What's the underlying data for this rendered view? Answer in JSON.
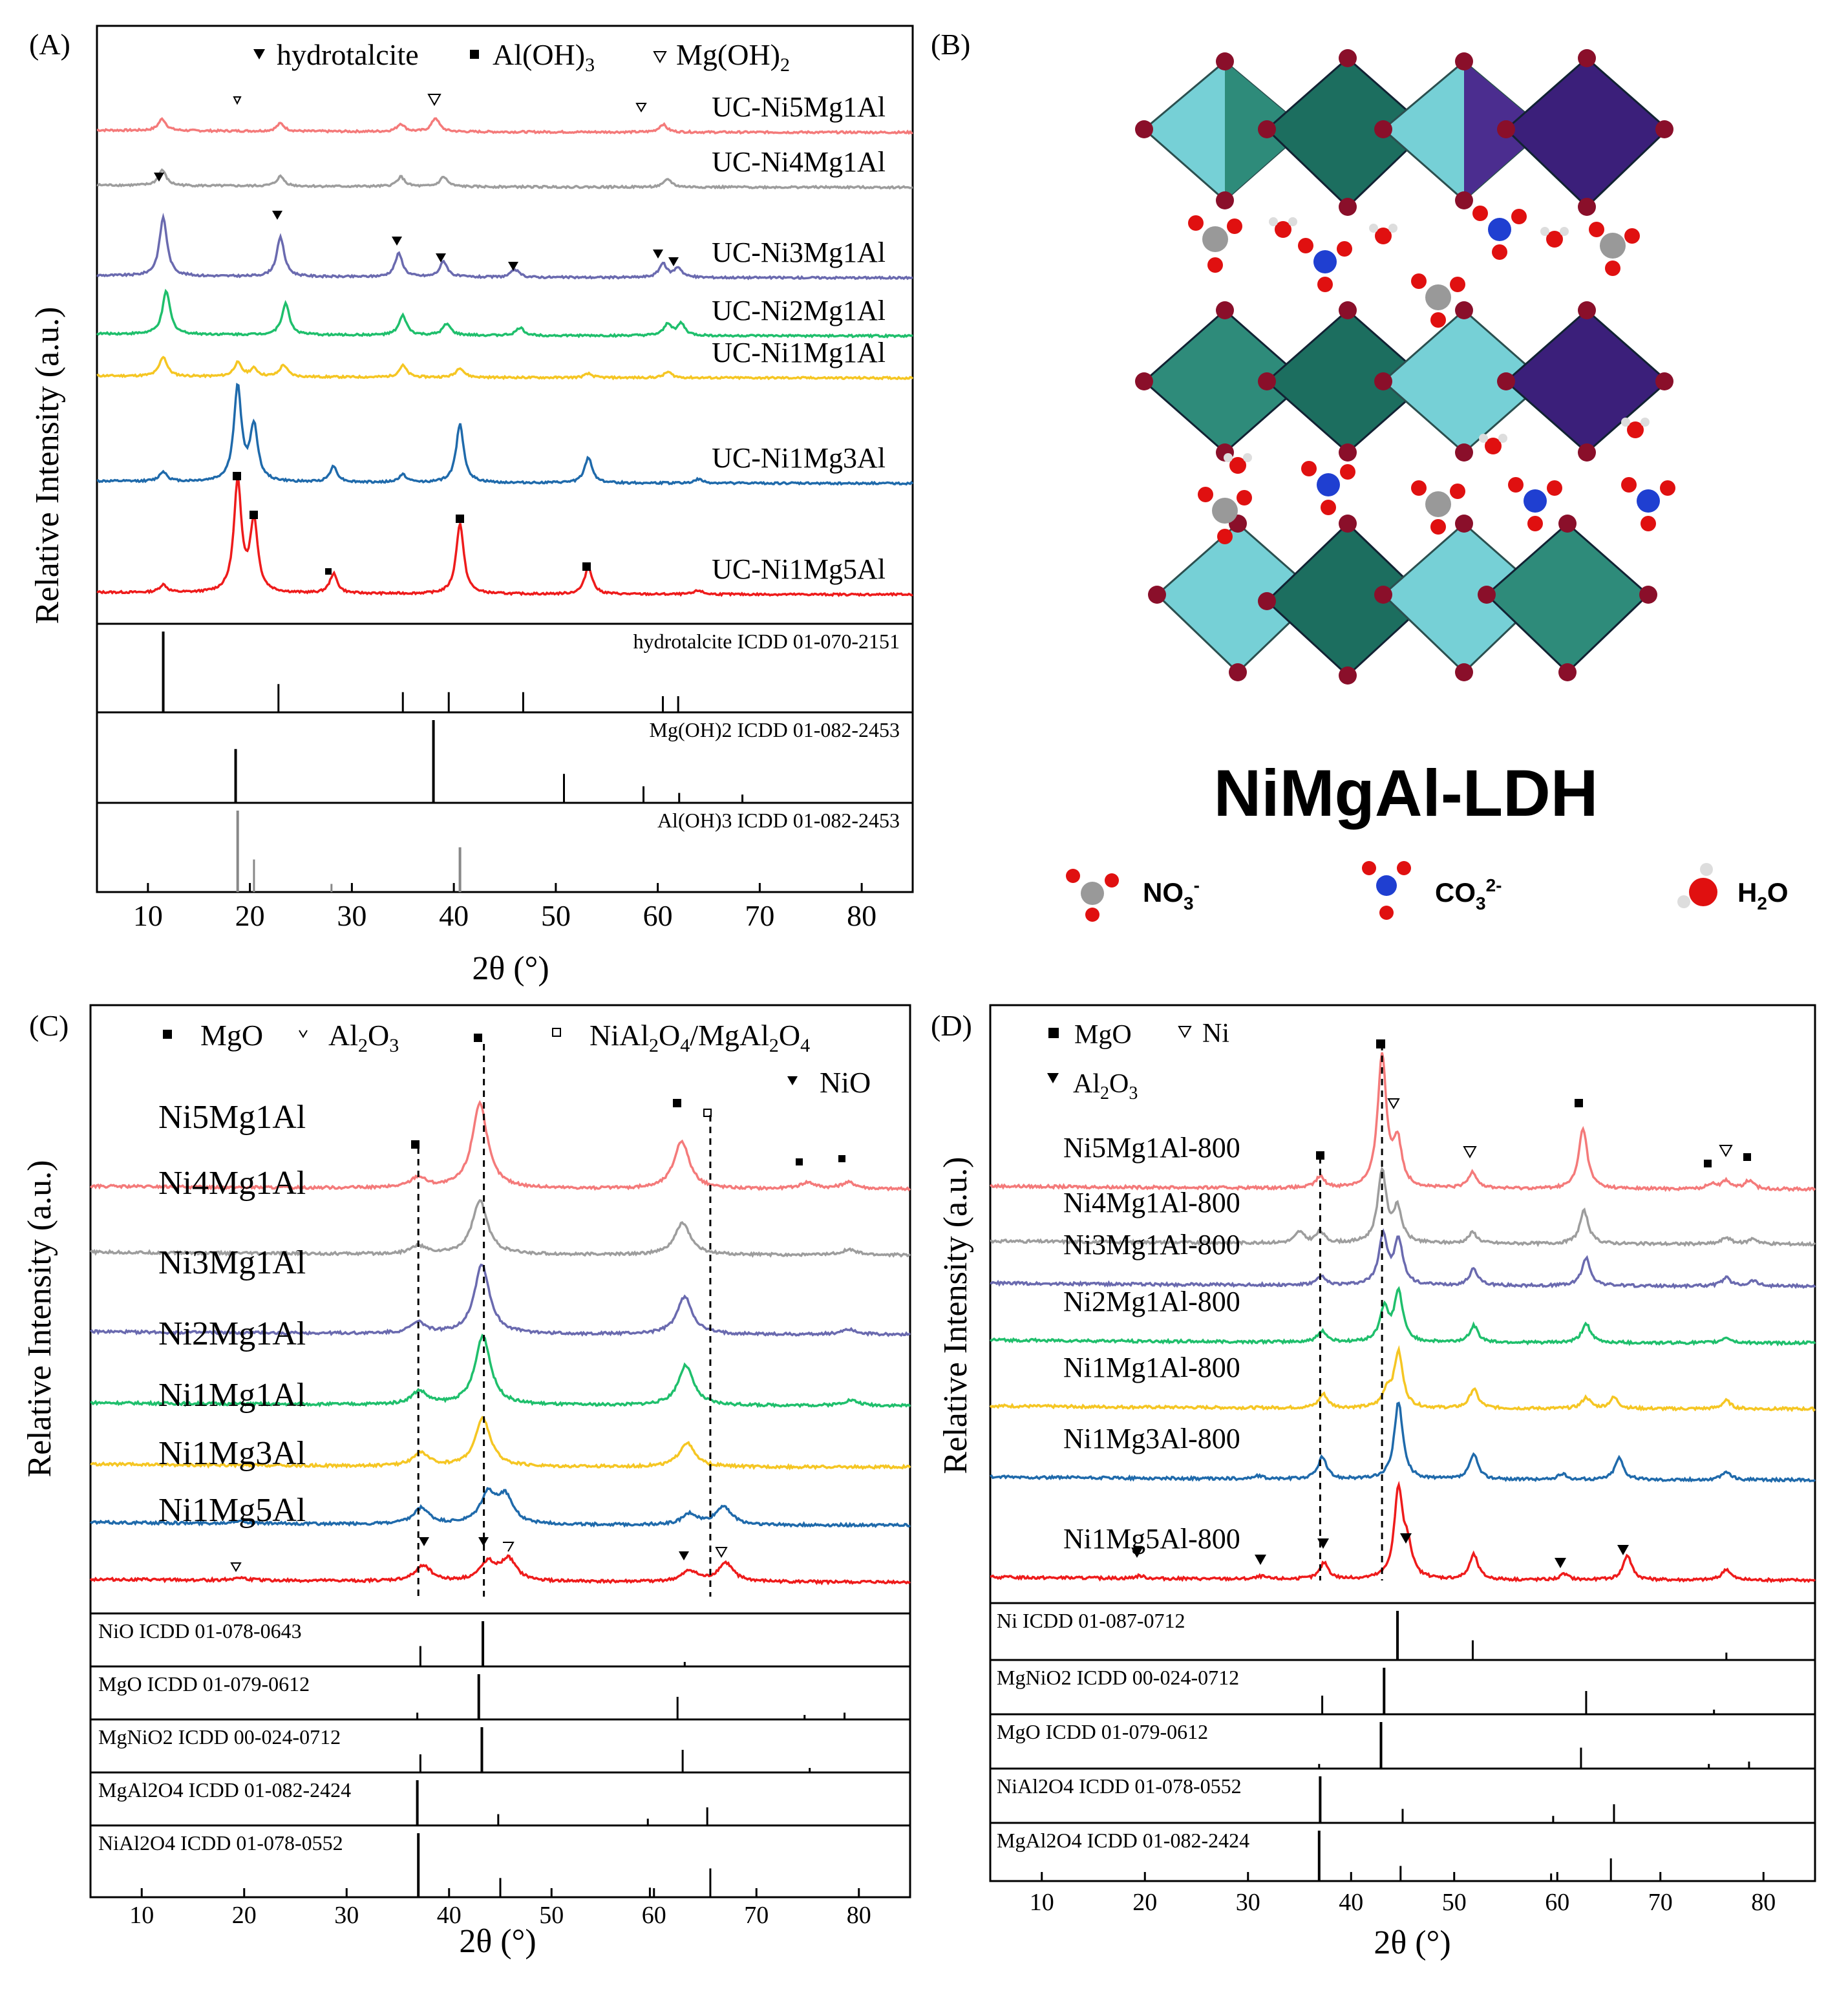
{
  "panels": {
    "A": {
      "tag": "(A)",
      "ylabel": "Relative Intensity (a.u.)",
      "xlabel": "2θ (°)",
      "legend": {
        "hydrotalcite": "hydrotalcite",
        "aloh3_a": "Al(OH)",
        "aloh3_b": "3",
        "mgoh2_a": "Mg(OH)",
        "mgoh2_b": "2"
      },
      "ticks": [
        "10",
        "20",
        "30",
        "40",
        "50",
        "60",
        "70",
        "80"
      ]
    },
    "B": {
      "tag": "(B)",
      "title": "NiMgAl-LDH",
      "legend": {
        "no3_a": "NO",
        "no3_b": "3",
        "no3_c": "-",
        "co3_a": "CO",
        "co3_b": "3",
        "co3_c": "2-",
        "h2o_a": "H",
        "h2o_b": "2",
        "h2o_c": "O"
      }
    },
    "C": {
      "tag": "(C)",
      "ylabel": "Relative Intensity (a.u.)",
      "xlabel": "2θ (°)",
      "legend": {
        "mgo": "MgO",
        "al2o3_a": "Al",
        "al2o3_b": "2",
        "al2o3_c": "O",
        "al2o3_d": "3",
        "spinel_a": "NiAl",
        "spinel_b": "2",
        "spinel_c": "O",
        "spinel_d": "4",
        "spinel_e": "/MgAl",
        "spinel_f": "2",
        "spinel_g": "O",
        "spinel_h": "4",
        "nio": "NiO"
      },
      "ticks": [
        "10",
        "20",
        "30",
        "40",
        "50",
        "60",
        "70",
        "80"
      ]
    },
    "D": {
      "tag": "(D)",
      "ylabel": "Relative Intensity (a.u.)",
      "xlabel": "2θ (°)",
      "legend": {
        "mgo": "MgO",
        "ni": "Ni",
        "al2o3_a": "Al",
        "al2o3_b": "2",
        "al2o3_c": "O",
        "al2o3_d": "3"
      },
      "ticks": [
        "10",
        "20",
        "30",
        "40",
        "50",
        "60",
        "70",
        "80"
      ]
    }
  },
  "chart_data": [
    {
      "panel": "A",
      "type": "line",
      "x_range": [
        5,
        85
      ],
      "xlabel": "2θ (°)",
      "ylabel": "Relative Intensity (a.u.)",
      "series": [
        {
          "name": "UC-Ni5Mg1Al",
          "color": "#f47a7a",
          "peaks": [
            [
              11.4,
              0.3
            ],
            [
              23,
              0.2
            ],
            [
              34.8,
              0.2
            ],
            [
              38.2,
              0.35
            ],
            [
              60.5,
              0.2
            ]
          ]
        },
        {
          "name": "UC-Ni4Mg1Al",
          "color": "#9d9d9d",
          "peaks": [
            [
              11.4,
              0.4
            ],
            [
              23,
              0.25
            ],
            [
              34.8,
              0.25
            ],
            [
              39,
              0.25
            ],
            [
              61,
              0.2
            ]
          ]
        },
        {
          "name": "UC-Ni3Mg1Al",
          "color": "#6a6aaf",
          "peaks": [
            [
              11.5,
              1.5
            ],
            [
              23,
              1.0
            ],
            [
              34.6,
              0.6
            ],
            [
              39,
              0.4
            ],
            [
              46,
              0.2
            ],
            [
              60.5,
              0.35
            ],
            [
              62,
              0.25
            ]
          ]
        },
        {
          "name": "UC-Ni2Mg1Al",
          "color": "#1fbf6c",
          "peaks": [
            [
              11.8,
              1.1
            ],
            [
              23.5,
              0.8
            ],
            [
              35,
              0.5
            ],
            [
              39.3,
              0.3
            ],
            [
              46.5,
              0.2
            ],
            [
              61,
              0.3
            ],
            [
              62.3,
              0.3
            ]
          ]
        },
        {
          "name": "UC-Ni1Mg1Al",
          "color": "#f5c623",
          "peaks": [
            [
              11.5,
              0.5
            ],
            [
              18.8,
              0.35
            ],
            [
              20.4,
              0.2
            ],
            [
              23.3,
              0.3
            ],
            [
              35,
              0.3
            ],
            [
              40.6,
              0.25
            ],
            [
              53.2,
              0.1
            ],
            [
              61,
              0.15
            ]
          ]
        },
        {
          "name": "UC-Ni1Mg3Al",
          "color": "#1f6aab",
          "peaks": [
            [
              11.5,
              0.25
            ],
            [
              18.8,
              2.4
            ],
            [
              20.4,
              1.4
            ],
            [
              28.2,
              0.4
            ],
            [
              35,
              0.2
            ],
            [
              40.6,
              1.5
            ],
            [
              53.2,
              0.65
            ],
            [
              64,
              0.1
            ]
          ]
        },
        {
          "name": "UC-Ni1Mg5Al",
          "color": "#ee1b1b",
          "peaks": [
            [
              11.5,
              0.2
            ],
            [
              18.8,
              2.8
            ],
            [
              20.4,
              1.8
            ],
            [
              28.2,
              0.5
            ],
            [
              40.6,
              1.8
            ],
            [
              53.2,
              0.7
            ],
            [
              64,
              0.1
            ]
          ]
        }
      ],
      "references": [
        {
          "label": "hydrotalcite ICDD 01-070-2151",
          "color": "#000000",
          "lines": [
            [
              11.5,
              1.0
            ],
            [
              22.8,
              0.35
            ],
            [
              35,
              0.25
            ],
            [
              39.5,
              0.25
            ],
            [
              46.8,
              0.25
            ],
            [
              60.5,
              0.2
            ],
            [
              62,
              0.2
            ]
          ]
        },
        {
          "label": "Mg(OH)2 ICDD 01-082-2453",
          "color": "#000000",
          "lines": [
            [
              18.6,
              0.65
            ],
            [
              38,
              1.0
            ],
            [
              50.8,
              0.35
            ],
            [
              58.6,
              0.2
            ],
            [
              62.1,
              0.12
            ],
            [
              68.3,
              0.1
            ]
          ]
        },
        {
          "label": "Al(OH)3 ICDD 01-082-2453",
          "color": "#888888",
          "lines": [
            [
              18.8,
              1.0
            ],
            [
              20.4,
              0.4
            ],
            [
              28,
              0.1
            ],
            [
              40.6,
              0.55
            ]
          ]
        }
      ]
    },
    {
      "panel": "C",
      "type": "line",
      "x_range": [
        5,
        85
      ],
      "xlabel": "2θ (°)",
      "ylabel": "Relative Intensity (a.u.)",
      "series": [
        {
          "name": "Ni5Mg1Al",
          "color": "#f47a7a",
          "peaks": [
            [
              37,
              0.2
            ],
            [
              43,
              1.6
            ],
            [
              62.7,
              0.9
            ],
            [
              75,
              0.12
            ],
            [
              79,
              0.12
            ]
          ]
        },
        {
          "name": "Ni4Mg1Al",
          "color": "#9d9d9d",
          "peaks": [
            [
              37,
              0.15
            ],
            [
              43,
              1.0
            ],
            [
              62.8,
              0.6
            ],
            [
              79,
              0.1
            ]
          ]
        },
        {
          "name": "Ni3Mg1Al",
          "color": "#6a6aaf",
          "peaks": [
            [
              37,
              0.2
            ],
            [
              43.2,
              1.3
            ],
            [
              63,
              0.7
            ],
            [
              79,
              0.1
            ]
          ]
        },
        {
          "name": "Ni2Mg1Al",
          "color": "#1fbf6c",
          "peaks": [
            [
              37.1,
              0.25
            ],
            [
              43.3,
              1.3
            ],
            [
              63.1,
              0.75
            ],
            [
              79.2,
              0.1
            ]
          ]
        },
        {
          "name": "Ni1Mg1Al",
          "color": "#f5c623",
          "peaks": [
            [
              37.2,
              0.25
            ],
            [
              43.3,
              0.9
            ],
            [
              63.2,
              0.45
            ]
          ]
        },
        {
          "name": "Ni1Mg3Al",
          "color": "#1f6aab",
          "peaks": [
            [
              19.5,
              0.05
            ],
            [
              37.3,
              0.3
            ],
            [
              43.8,
              0.55
            ],
            [
              45.5,
              0.5
            ],
            [
              63.5,
              0.2
            ],
            [
              66.8,
              0.35
            ]
          ]
        },
        {
          "name": "Ni1Mg5Al",
          "color": "#ee1b1b",
          "peaks": [
            [
              19.5,
              0.05
            ],
            [
              37.5,
              0.3
            ],
            [
              43.8,
              0.35
            ],
            [
              45.8,
              0.4
            ],
            [
              63.5,
              0.2
            ],
            [
              67,
              0.35
            ]
          ]
        }
      ],
      "references": [
        {
          "label": "NiO ICDD 01-078-0643",
          "color": "#000000",
          "lines": [
            [
              37.2,
              0.45
            ],
            [
              43.3,
              1.0
            ],
            [
              63,
              0.1
            ]
          ]
        },
        {
          "label": "MgO ICDD 01-079-0612",
          "color": "#000000",
          "lines": [
            [
              36.9,
              0.15
            ],
            [
              42.9,
              1.0
            ],
            [
              62.3,
              0.5
            ],
            [
              74.7,
              0.1
            ],
            [
              78.6,
              0.15
            ]
          ]
        },
        {
          "label": "MgNiO2 ICDD 00-024-0712",
          "color": "#000000",
          "lines": [
            [
              37.2,
              0.4
            ],
            [
              43.2,
              1.0
            ],
            [
              62.8,
              0.5
            ],
            [
              75.2,
              0.1
            ]
          ]
        },
        {
          "label": "MgAl2O4 ICDD 01-082-2424",
          "color": "#000000",
          "lines": [
            [
              36.9,
              1.0
            ],
            [
              44.8,
              0.25
            ],
            [
              59.4,
              0.15
            ],
            [
              65.2,
              0.4
            ]
          ]
        },
        {
          "label": "NiAl2O4 ICDD 01-078-0552",
          "color": "#000000",
          "lines": [
            [
              37,
              1.0
            ],
            [
              45,
              0.3
            ],
            [
              59.6,
              0.15
            ],
            [
              65.5,
              0.45
            ]
          ]
        }
      ]
    },
    {
      "panel": "D",
      "type": "line",
      "x_range": [
        5,
        85
      ],
      "xlabel": "2θ (°)",
      "ylabel": "Relative Intensity (a.u.)",
      "series": [
        {
          "name": "Ni5Mg1Al-800",
          "color": "#f47a7a",
          "peaks": [
            [
              37,
              0.2
            ],
            [
              43,
              2.4
            ],
            [
              44.5,
              0.8
            ],
            [
              51.8,
              0.3
            ],
            [
              62.5,
              1.1
            ],
            [
              75,
              0.1
            ],
            [
              76.4,
              0.15
            ],
            [
              78.6,
              0.15
            ]
          ]
        },
        {
          "name": "Ni4Mg1Al-800",
          "color": "#9d9d9d",
          "peaks": [
            [
              35,
              0.2
            ],
            [
              37,
              0.2
            ],
            [
              43,
              1.3
            ],
            [
              44.5,
              0.6
            ],
            [
              51.8,
              0.2
            ],
            [
              62.6,
              0.6
            ],
            [
              76.4,
              0.12
            ],
            [
              79,
              0.1
            ]
          ]
        },
        {
          "name": "Ni3Mg1Al-800",
          "color": "#6a6aaf",
          "peaks": [
            [
              37.1,
              0.15
            ],
            [
              43.1,
              0.9
            ],
            [
              44.6,
              0.8
            ],
            [
              51.9,
              0.3
            ],
            [
              62.8,
              0.5
            ],
            [
              76.4,
              0.15
            ],
            [
              79,
              0.1
            ]
          ]
        },
        {
          "name": "Ni2Mg1Al-800",
          "color": "#1fbf6c",
          "peaks": [
            [
              37.2,
              0.2
            ],
            [
              43.2,
              0.6
            ],
            [
              44.6,
              0.9
            ],
            [
              51.9,
              0.3
            ],
            [
              62.8,
              0.35
            ],
            [
              76.4,
              0.1
            ]
          ]
        },
        {
          "name": "Ni1Mg1Al-800",
          "color": "#f5c623",
          "peaks": [
            [
              37.3,
              0.25
            ],
            [
              43.5,
              0.3
            ],
            [
              44.6,
              1.0
            ],
            [
              51.9,
              0.35
            ],
            [
              62.8,
              0.2
            ],
            [
              65.5,
              0.2
            ],
            [
              76.4,
              0.15
            ]
          ]
        },
        {
          "name": "Ni1Mg3Al-800",
          "color": "#1f6aab",
          "peaks": [
            [
              31,
              0.05
            ],
            [
              37.2,
              0.4
            ],
            [
              44.6,
              1.4
            ],
            [
              51.9,
              0.45
            ],
            [
              60.5,
              0.1
            ],
            [
              66,
              0.4
            ],
            [
              76.4,
              0.15
            ]
          ]
        },
        {
          "name": "Ni1Mg5Al-800",
          "color": "#ee1b1b",
          "peaks": [
            [
              19.5,
              0.05
            ],
            [
              31.3,
              0.05
            ],
            [
              37.4,
              0.3
            ],
            [
              44.6,
              1.6
            ],
            [
              45.5,
              0.5
            ],
            [
              51.9,
              0.45
            ],
            [
              60.7,
              0.1
            ],
            [
              66.8,
              0.45
            ],
            [
              76.4,
              0.2
            ]
          ]
        }
      ],
      "references": [
        {
          "label": "Ni ICDD 01-087-0712",
          "color": "#000000",
          "lines": [
            [
              44.5,
              1.0
            ],
            [
              51.8,
              0.4
            ],
            [
              76.4,
              0.15
            ]
          ]
        },
        {
          "label": "MgNiO2 ICDD 00-024-0712",
          "color": "#000000",
          "lines": [
            [
              37.2,
              0.4
            ],
            [
              43.2,
              1.0
            ],
            [
              62.8,
              0.5
            ],
            [
              75.2,
              0.1
            ]
          ]
        },
        {
          "label": "MgO ICDD 01-079-0612",
          "color": "#000000",
          "lines": [
            [
              36.9,
              0.1
            ],
            [
              42.9,
              1.0
            ],
            [
              62.3,
              0.45
            ],
            [
              74.7,
              0.1
            ],
            [
              78.6,
              0.15
            ]
          ]
        },
        {
          "label": "NiAl2O4 ICDD 01-078-0552",
          "color": "#000000",
          "lines": [
            [
              37,
              1.0
            ],
            [
              45,
              0.3
            ],
            [
              59.6,
              0.15
            ],
            [
              65.5,
              0.4
            ]
          ]
        },
        {
          "label": "MgAl2O4 ICDD 01-082-2424",
          "color": "#000000",
          "lines": [
            [
              36.9,
              1.0
            ],
            [
              44.8,
              0.3
            ],
            [
              59.4,
              0.15
            ],
            [
              65.2,
              0.45
            ]
          ]
        }
      ]
    }
  ]
}
